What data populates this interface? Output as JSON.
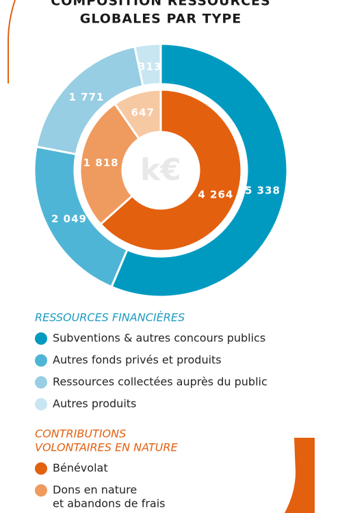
{
  "chart_data": {
    "type": "donut",
    "title": [
      "COMPOSITION RESSOURCES",
      "GLOBALES PAR TYPE"
    ],
    "center_label": "k€",
    "rings": [
      {
        "name": "RESSOURCES FINANCIÈRES",
        "color": "#1d9bc0",
        "categories": [
          "Subventions & autres concours publics",
          "Autres fonds privés et produits",
          "Ressources collectées auprès du public",
          "Autres produits"
        ],
        "colors": [
          "#009ac0",
          "#4fb5d6",
          "#97cee3",
          "#c8e6f1"
        ],
        "values": [
          5338,
          2049,
          1771,
          313
        ],
        "value_labels": [
          "5 338",
          "2 049",
          "1 771",
          "313"
        ]
      },
      {
        "name": [
          "CONTRIBUTIONS",
          "VOLONTAIRES EN NATURE"
        ],
        "color": "#e3600f",
        "categories": [
          "Bénévolat",
          [
            "Dons en nature",
            "et abandons de frais"
          ],
          null
        ],
        "colors": [
          "#e3600f",
          "#ef9a5e",
          "#f6c9a3"
        ],
        "values": [
          4264,
          1818,
          647
        ],
        "value_labels": [
          "4 264",
          "1 818",
          "647"
        ]
      }
    ]
  }
}
